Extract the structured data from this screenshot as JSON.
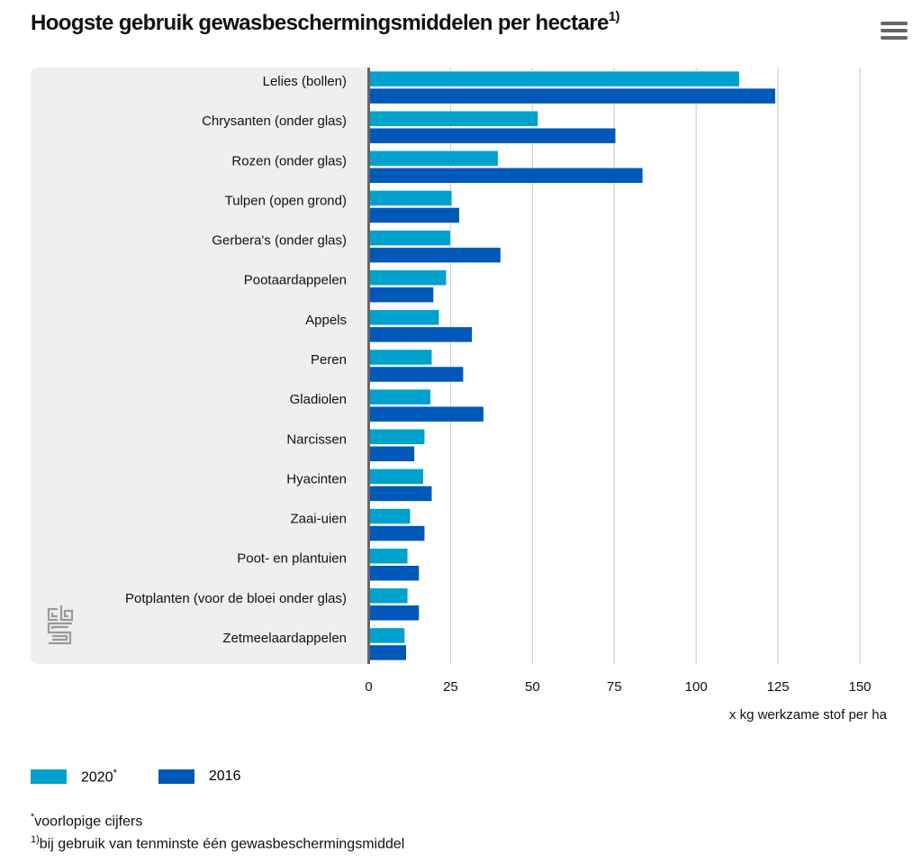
{
  "header": {
    "title": "Hoogste gebruik gewasbeschermingsmiddelen per hectare",
    "title_footnote": "1)",
    "menu_icon": "hamburger-menu-icon"
  },
  "colors": {
    "series_2020": "#00a1cd",
    "series_2016": "#0058b8",
    "panel": "#efefef",
    "grid": "#d0d0d0",
    "axis": "#666666"
  },
  "legend": {
    "items": [
      {
        "label": "2020",
        "suffix": "*"
      },
      {
        "label": "2016",
        "suffix": ""
      }
    ]
  },
  "notes": {
    "line1_marker": "*",
    "line1": "voorlopige cijfers",
    "line2_marker": "1)",
    "line2": "bij gebruik van tenminste één gewasbeschermingsmiddel"
  },
  "logo": "cbs-logo-icon",
  "chart_data": {
    "type": "bar",
    "orientation": "horizontal",
    "title": "Hoogste gebruik gewasbeschermingsmiddelen per hectare",
    "xlabel": "x kg werkzame stof per ha",
    "ylabel": "",
    "xlim": [
      0,
      150
    ],
    "xticks": [
      0,
      25,
      50,
      75,
      100,
      125,
      150
    ],
    "grid": true,
    "legend_position": "bottom-left",
    "categories": [
      "Lelies (bollen)",
      "Chrysanten (onder glas)",
      "Rozen (onder glas)",
      "Tulpen (open grond)",
      "Gerbera's (onder glas)",
      "Pootaardappelen",
      "Appels",
      "Peren",
      "Gladiolen",
      "Narcissen",
      "Hyacinten",
      "Zaai-uien",
      "Poot- en plantuien",
      "Potplanten (voor de bloei onder glas)",
      "Zetmeelaardappelen"
    ],
    "series": [
      {
        "name": "2020*",
        "values": [
          113.2,
          51.7,
          39.5,
          25.4,
          25.0,
          23.7,
          21.5,
          19.3,
          18.9,
          17.1,
          16.7,
          12.7,
          11.9,
          11.9,
          11.0
        ]
      },
      {
        "name": "2016",
        "values": [
          124.2,
          75.4,
          83.7,
          27.7,
          40.3,
          19.8,
          31.6,
          28.9,
          35.1,
          14.0,
          19.3,
          17.1,
          15.4,
          15.4,
          11.5
        ]
      }
    ]
  }
}
